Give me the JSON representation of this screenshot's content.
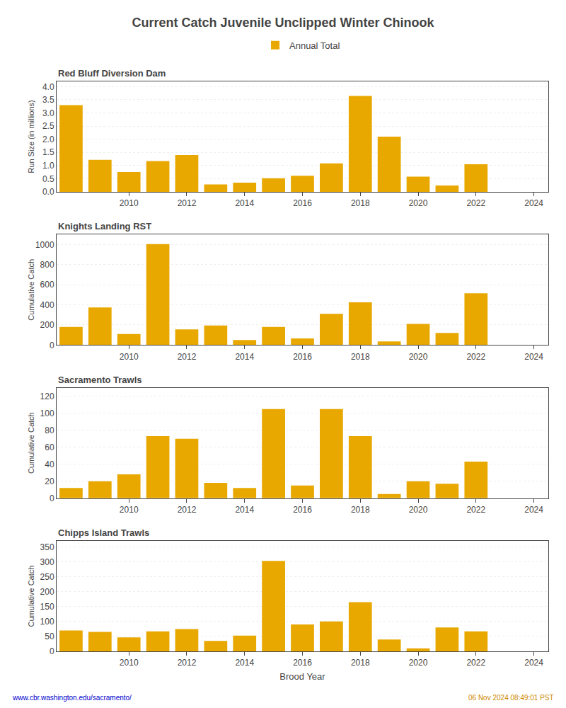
{
  "title": "Current Catch Juvenile Unclipped Winter Chinook",
  "legend": "top",
  "annotations": [
    {
      "text": "www.cbr.washington.edu/sacramento/",
      "color": "#0000CC"
    },
    {
      "text": "06 Nov 2024 08:49:01 PST",
      "color": "#CC8800"
    }
  ],
  "chart_data": [
    {
      "type": "bar",
      "title": "Red Bluff Diversion Dam",
      "ylabel": "Run Size (in millions)",
      "x": [
        2008,
        2009,
        2010,
        2011,
        2012,
        2013,
        2014,
        2015,
        2016,
        2017,
        2018,
        2019,
        2020,
        2021,
        2022,
        2023
      ],
      "series": [
        {
          "name": "Annual Total",
          "color": "#E8A800",
          "values": [
            3.3,
            1.22,
            0.75,
            1.17,
            1.4,
            0.28,
            0.35,
            0.52,
            0.61,
            1.08,
            3.65,
            2.1,
            0.58,
            0.24,
            1.05,
            0.0
          ]
        }
      ],
      "xlim": [
        2007.5,
        2024.5
      ],
      "xticks": [
        2010,
        2012,
        2014,
        2016,
        2018,
        2020,
        2022,
        2024
      ],
      "ylim": [
        0,
        4.2
      ],
      "yticks": [
        {
          "value": 0,
          "label": "0.0"
        },
        0.5,
        {
          "value": 1,
          "label": "1.0"
        },
        1.5,
        {
          "value": 2,
          "label": "2.0"
        },
        2.5,
        {
          "value": 3,
          "label": "3.0"
        },
        3.5,
        {
          "value": 4,
          "label": "4.0"
        }
      ],
      "grid": true
    },
    {
      "type": "bar",
      "title": "Knights Landing RST",
      "ylabel": "Cumulative Catch",
      "x": [
        2008,
        2009,
        2010,
        2011,
        2012,
        2013,
        2014,
        2015,
        2016,
        2017,
        2018,
        2019,
        2020,
        2021,
        2022,
        2023
      ],
      "series": [
        {
          "name": "Annual Total",
          "color": "#E8A800",
          "values": [
            180,
            375,
            110,
            1005,
            155,
            195,
            50,
            180,
            65,
            310,
            425,
            35,
            210,
            120,
            515,
            0
          ]
        }
      ],
      "xlim": [
        2007.5,
        2024.5
      ],
      "xticks": [
        2010,
        2012,
        2014,
        2016,
        2018,
        2020,
        2022,
        2024
      ],
      "ylim": [
        0,
        1100
      ],
      "yticks": [
        0,
        200,
        400,
        600,
        800,
        1000
      ],
      "grid": true
    },
    {
      "type": "bar",
      "title": "Sacramento Trawls",
      "ylabel": "Cumulative Catch",
      "x": [
        2008,
        2009,
        2010,
        2011,
        2012,
        2013,
        2014,
        2015,
        2016,
        2017,
        2018,
        2019,
        2020,
        2021,
        2022,
        2023
      ],
      "series": [
        {
          "name": "Annual Total",
          "color": "#E8A800",
          "values": [
            12,
            20,
            28,
            73,
            70,
            18,
            12,
            105,
            15,
            105,
            73,
            5,
            20,
            17,
            43,
            0
          ]
        }
      ],
      "xlim": [
        2007.5,
        2024.5
      ],
      "xticks": [
        2010,
        2012,
        2014,
        2016,
        2018,
        2020,
        2022,
        2024
      ],
      "ylim": [
        0,
        130
      ],
      "yticks": [
        0,
        20,
        40,
        60,
        80,
        100,
        120
      ],
      "grid": true
    },
    {
      "type": "bar",
      "title": "Chipps Island Trawls",
      "ylabel": "Cumulative Catch",
      "xlabel": "Brood Year",
      "x": [
        2008,
        2009,
        2010,
        2011,
        2012,
        2013,
        2014,
        2015,
        2016,
        2017,
        2018,
        2019,
        2020,
        2021,
        2022,
        2023
      ],
      "series": [
        {
          "name": "Annual Total",
          "color": "#E8A800",
          "values": [
            70,
            65,
            47,
            67,
            75,
            35,
            53,
            303,
            90,
            100,
            165,
            40,
            10,
            80,
            67,
            0
          ]
        }
      ],
      "xlim": [
        2007.5,
        2024.5
      ],
      "xticks": [
        2010,
        2012,
        2014,
        2016,
        2018,
        2020,
        2022,
        2024
      ],
      "ylim": [
        0,
        370
      ],
      "yticks": [
        0,
        50,
        100,
        150,
        200,
        250,
        300,
        350
      ],
      "grid": true
    }
  ]
}
